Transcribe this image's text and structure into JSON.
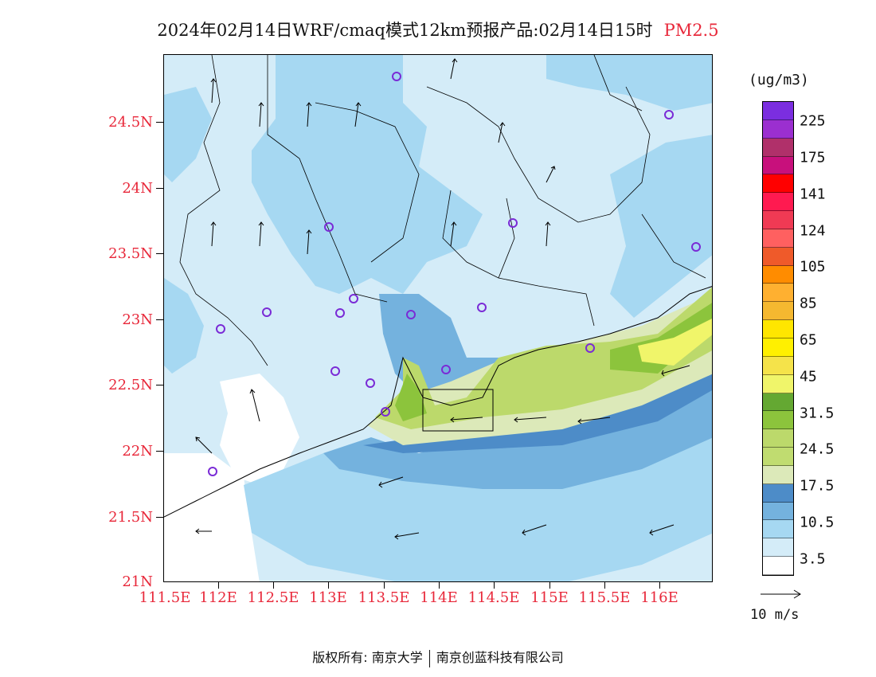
{
  "title": {
    "main": "2024年02月14日WRF/cmaq模式12km预报产品:02月14日15时",
    "pollutant": "PM2.5"
  },
  "map": {
    "lat_labels": [
      "24.5N",
      "24N",
      "23.5N",
      "23N",
      "22.5N",
      "22N",
      "21.5N",
      "21N"
    ],
    "lon_labels": [
      "111.5E",
      "112E",
      "112.5E",
      "113E",
      "113.5E",
      "114E",
      "114.5E",
      "115E",
      "115.5E",
      "116E"
    ],
    "colors": {
      "land_clean": "#d4ecf8",
      "light_blue": "#a6d8f2",
      "mid_blue": "#74b2de",
      "dark_blue": "#4d8cc8",
      "pale_green": "#dce9b9",
      "light_green": "#bcd96b",
      "mid_green": "#8cc43c",
      "dark_green": "#66a230",
      "yellow": "#f0f56a",
      "station": "#7a2bd6"
    }
  },
  "legend": {
    "unit": "(ug/m3)",
    "labels": [
      "225",
      "175",
      "141",
      "124",
      "105",
      "85",
      "65",
      "45",
      "31.5",
      "24.5",
      "17.5",
      "10.5",
      "3.5"
    ],
    "swatches": [
      "#7b2ee0",
      "#9b2fd0",
      "#b0306a",
      "#c8107c",
      "#ff0000",
      "#ff1a50",
      "#f03a54",
      "#ff6060",
      "#ef5a2a",
      "#ff8c00",
      "#ffb030",
      "#f5b830",
      "#ffe600",
      "#fff000",
      "#f5e34a",
      "#f0f56a",
      "#64a832",
      "#8cc43c",
      "#bcd96b",
      "#c0dc70",
      "#dce9b9",
      "#4d8cc8",
      "#74b2de",
      "#a6d8f2",
      "#d4ecf8",
      "#ffffff"
    ],
    "vector_label": "10 m/s"
  },
  "copyright": {
    "prefix": "版权所有:",
    "org1": "南京大学",
    "org2": "南京创蓝科技有限公司"
  }
}
